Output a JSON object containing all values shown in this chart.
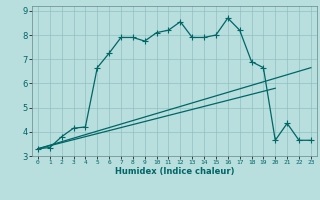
{
  "title": "",
  "xlabel": "Humidex (Indice chaleur)",
  "bg_color": "#b8dede",
  "line_color": "#006666",
  "grid_color": "#90c0c0",
  "xlim": [
    -0.5,
    23.5
  ],
  "ylim": [
    3.0,
    9.2
  ],
  "xticks": [
    0,
    1,
    2,
    3,
    4,
    5,
    6,
    7,
    8,
    9,
    10,
    11,
    12,
    13,
    14,
    15,
    16,
    17,
    18,
    19,
    20,
    21,
    22,
    23
  ],
  "yticks": [
    3,
    4,
    5,
    6,
    7,
    8,
    9
  ],
  "line1_x": [
    0,
    1,
    2,
    3,
    4,
    5,
    6,
    7,
    8,
    9,
    10,
    11,
    12,
    13,
    14,
    15,
    16,
    17,
    18,
    19,
    20,
    21,
    22,
    23
  ],
  "line1_y": [
    3.3,
    3.35,
    3.8,
    4.15,
    4.2,
    6.65,
    7.25,
    7.9,
    7.9,
    7.75,
    8.1,
    8.2,
    8.55,
    7.9,
    7.9,
    8.0,
    8.7,
    8.2,
    6.9,
    6.65,
    3.65,
    4.35,
    3.65,
    3.65
  ],
  "line3_x": [
    0,
    23
  ],
  "line3_y": [
    3.3,
    6.65
  ],
  "line4_x": [
    0,
    20
  ],
  "line4_y": [
    3.3,
    5.8
  ],
  "marker": "+",
  "markersize": 4,
  "linewidth": 0.9
}
